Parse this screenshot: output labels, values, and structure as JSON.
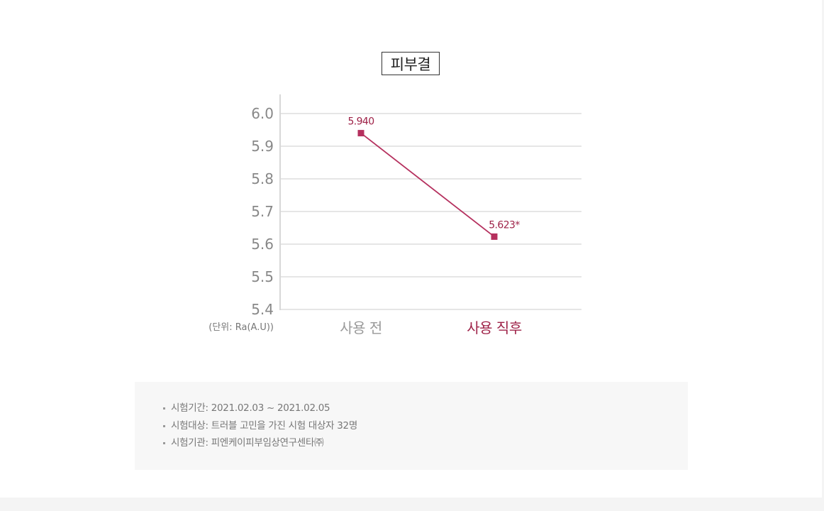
{
  "chart_data": {
    "type": "line",
    "title": "피부결",
    "categories": [
      "사용 전",
      "사용 직후"
    ],
    "values": [
      5.94,
      5.623
    ],
    "data_labels": [
      "5.940",
      "5.623*"
    ],
    "ylim": [
      5.4,
      6.0
    ],
    "yticks": [
      6.0,
      5.9,
      5.8,
      5.7,
      5.6,
      5.5,
      5.4
    ],
    "ytick_labels": [
      "6.0",
      "5.9",
      "5.8",
      "5.7",
      "5.6",
      "5.5",
      "5.4"
    ],
    "unit_label": "(단위: Ra(A.U))",
    "grid": true,
    "legend": "none",
    "colors": {
      "series": "#b5305e",
      "label": "#9e2147",
      "highlight_category": "#9e2147",
      "muted_category": "#999999",
      "grid": "#dddddd"
    }
  },
  "notes": [
    "시험기간: 2021.02.03 ~ 2021.02.05",
    "시험대상: 트러블 고민을 가진 시험 대상자 32명",
    "시험기관: 피엔케이피부임상연구센타㈜"
  ]
}
